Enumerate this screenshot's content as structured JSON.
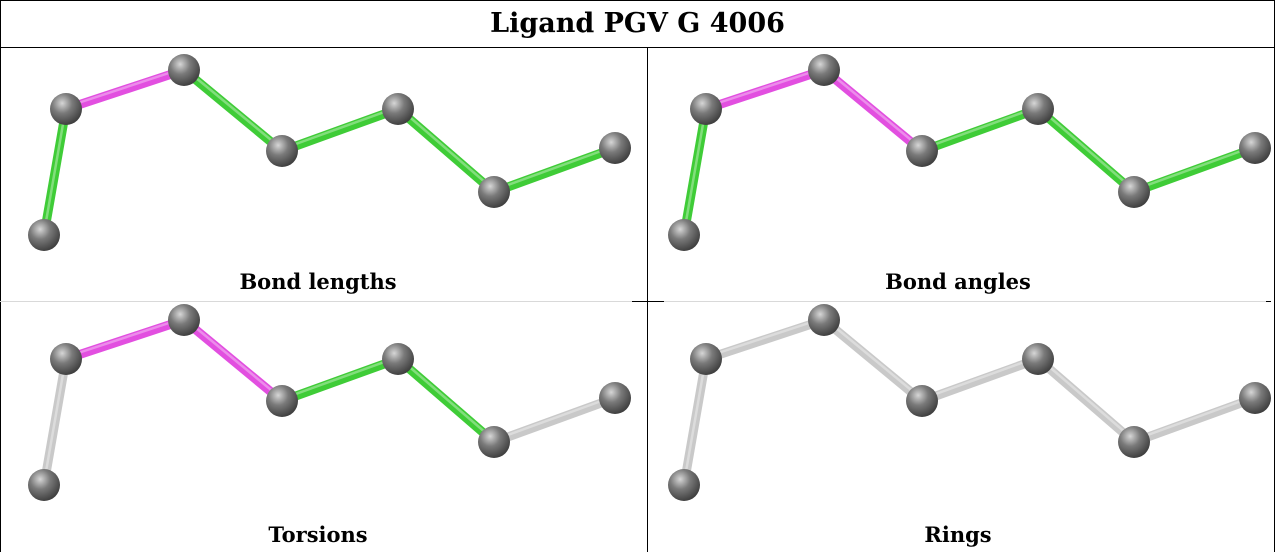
{
  "title": "Ligand PGV G 4006",
  "colors": {
    "atom": "#7a7a7a",
    "atom_highlight": "#d6d6d6",
    "bond_pink": "#e24fe0",
    "bond_green": "#3fcc37",
    "bond_gray": "#c9c9c9",
    "border": "#000000"
  },
  "panels": [
    {
      "caption": "Bond lengths",
      "bond_colors": [
        "green",
        "pink",
        "green",
        "green",
        "green",
        "green",
        "green"
      ]
    },
    {
      "caption": "Bond angles",
      "bond_colors": [
        "green",
        "pink",
        "pink",
        "green",
        "green",
        "green",
        "green"
      ]
    },
    {
      "caption": "Torsions",
      "bond_colors": [
        "gray",
        "pink",
        "pink",
        "green",
        "green",
        "gray",
        "gray"
      ]
    },
    {
      "caption": "Rings",
      "bond_colors": [
        "gray",
        "gray",
        "gray",
        "gray",
        "gray",
        "gray",
        "gray"
      ]
    }
  ]
}
